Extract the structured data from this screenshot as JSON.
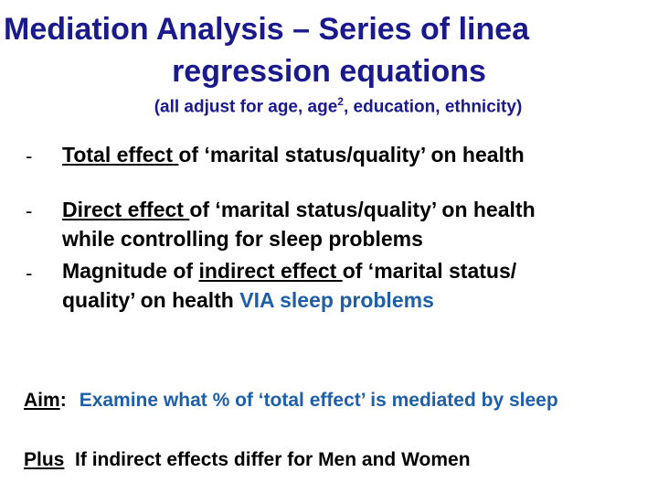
{
  "title": {
    "line1": "Mediation Analysis  –  Series of  linea",
    "line2": "regression equations"
  },
  "subtitle": {
    "prefix": "(all adjust for age, age",
    "superscript": "2",
    "suffix": ", education, ethnicity)"
  },
  "bullets": [
    {
      "dash": "-",
      "underlined": "Total effect ",
      "rest": "of ‘marital status/quality’ on health"
    },
    {
      "dash": "-",
      "underlined": "Direct effect ",
      "rest": "of ‘marital status/quality’ on health",
      "line2": "while controlling for sleep problems"
    },
    {
      "dash": "-",
      "prefix": "Magnitude of ",
      "underlined": "indirect effect ",
      "rest": "of ‘marital status/",
      "line2_prefix": "quality’ on health ",
      "line2_blue": "VIA sleep problems"
    }
  ],
  "aim": {
    "label": "Aim",
    "colon": ":",
    "text": "Examine what % of ‘total effect’ is mediated by sleep"
  },
  "plus": {
    "label": "Plus",
    "text": "  If indirect effects differ for Men and Women"
  },
  "colors": {
    "title": "#1a1a8c",
    "accent_blue": "#1f5fa8",
    "body_text": "#000000"
  }
}
